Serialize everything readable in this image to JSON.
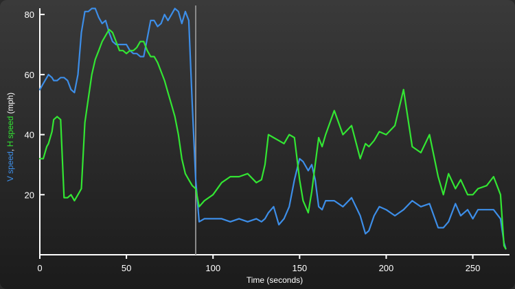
{
  "chart_data": {
    "type": "line",
    "xlabel": "Time (seconds)",
    "ylabel_parts": [
      {
        "text": "V speed",
        "color": "#3d8ee8"
      },
      {
        "text": ", ",
        "color": "#ffffff"
      },
      {
        "text": "H speed",
        "color": "#33e633"
      },
      {
        "text": " (mph)",
        "color": "#ffffff"
      }
    ],
    "xlim": [
      0,
      270
    ],
    "ylim": [
      0,
      83
    ],
    "xticks": [
      0,
      50,
      100,
      150,
      200,
      250
    ],
    "yticks": [
      20,
      40,
      60,
      80
    ],
    "marker_x": 90,
    "grid": false,
    "series": [
      {
        "name": "V speed",
        "color": "#3d8ee8",
        "x": [
          0,
          2,
          4,
          5,
          7,
          8,
          10,
          12,
          14,
          16,
          18,
          20,
          22,
          24,
          26,
          28,
          30,
          32,
          34,
          36,
          38,
          40,
          42,
          44,
          46,
          48,
          50,
          52,
          54,
          56,
          58,
          60,
          62,
          64,
          66,
          68,
          70,
          72,
          74,
          76,
          78,
          80,
          82,
          84,
          86,
          88,
          90,
          92,
          95,
          100,
          105,
          110,
          115,
          120,
          125,
          128,
          130,
          132,
          135,
          138,
          141,
          144,
          147,
          150,
          152,
          155,
          157,
          159,
          161,
          163,
          165,
          170,
          175,
          180,
          185,
          188,
          190,
          193,
          196,
          200,
          205,
          210,
          215,
          220,
          225,
          230,
          233,
          236,
          240,
          243,
          247,
          250,
          253,
          258,
          262,
          266,
          268,
          269
        ],
        "values": [
          55,
          57,
          59,
          60,
          59,
          58,
          58,
          59,
          59,
          58,
          55,
          54,
          60,
          74,
          81,
          81,
          82,
          82,
          79,
          77,
          78,
          74,
          71,
          70,
          70,
          70,
          70,
          68,
          67,
          67,
          66,
          66,
          72,
          78,
          78,
          76,
          77,
          80,
          78,
          80,
          82,
          81,
          77,
          81,
          78,
          50,
          25,
          11,
          12,
          12,
          12,
          11,
          12,
          11,
          12,
          11,
          12,
          14,
          16,
          10,
          12,
          16,
          25,
          32,
          31,
          28,
          30,
          25,
          16,
          15,
          18,
          18,
          16,
          19,
          13,
          7,
          8,
          13,
          16,
          15,
          13,
          15,
          18,
          16,
          17,
          9,
          9,
          11,
          17,
          13,
          15,
          12,
          15,
          15,
          15,
          12,
          4,
          2
        ]
      },
      {
        "name": "H speed",
        "color": "#33e633",
        "x": [
          0,
          2,
          4,
          5,
          7,
          8,
          10,
          12,
          14,
          16,
          18,
          20,
          22,
          24,
          26,
          28,
          30,
          32,
          34,
          36,
          38,
          40,
          42,
          44,
          46,
          48,
          50,
          52,
          54,
          56,
          58,
          60,
          62,
          64,
          66,
          68,
          70,
          72,
          74,
          76,
          78,
          80,
          82,
          84,
          86,
          88,
          90,
          92,
          95,
          100,
          105,
          110,
          115,
          120,
          125,
          128,
          130,
          132,
          135,
          138,
          141,
          144,
          147,
          150,
          152,
          155,
          157,
          159,
          161,
          163,
          165,
          170,
          175,
          180,
          185,
          188,
          190,
          193,
          196,
          200,
          205,
          210,
          215,
          220,
          225,
          230,
          233,
          236,
          240,
          243,
          247,
          250,
          253,
          258,
          262,
          266,
          268,
          269
        ],
        "values": [
          32,
          32,
          36,
          37,
          41,
          45,
          46,
          45,
          19,
          19,
          20,
          18,
          20,
          22,
          44,
          52,
          60,
          65,
          68,
          71,
          73,
          75,
          74,
          71,
          68,
          68,
          67,
          68,
          68,
          69,
          71,
          71,
          68,
          66,
          66,
          64,
          61,
          58,
          54,
          50,
          46,
          40,
          32,
          27,
          25,
          23,
          22,
          16,
          18,
          20,
          24,
          26,
          26,
          27,
          24,
          25,
          30,
          40,
          39,
          38,
          37,
          40,
          39,
          25,
          18,
          14,
          21,
          30,
          39,
          36,
          40,
          48,
          40,
          43,
          32,
          37,
          36,
          38,
          41,
          40,
          43,
          55,
          36,
          34,
          40,
          26,
          20,
          27,
          22,
          25,
          20,
          20,
          22,
          23,
          26,
          20,
          3,
          2
        ]
      }
    ]
  }
}
